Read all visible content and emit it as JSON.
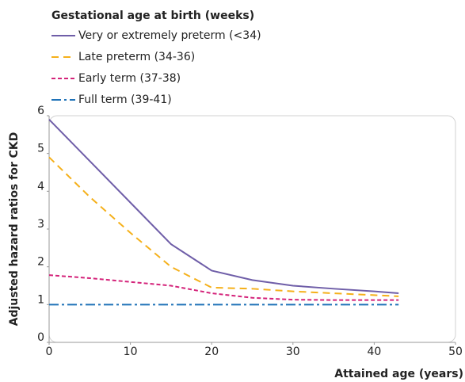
{
  "chart_data": {
    "type": "line",
    "legend_title": "Gestational age at birth (weeks)",
    "ylabel": "Adjusted hazard ratios for CKD",
    "xlabel": "Attained age (years)",
    "x": [
      0,
      5,
      10,
      15,
      20,
      25,
      30,
      35,
      40,
      43
    ],
    "series": [
      {
        "name": "Very or extremely preterm (<34)",
        "color": "#6f5ea8",
        "style": "solid",
        "values": [
          5.9,
          4.8,
          3.7,
          2.6,
          1.9,
          1.65,
          1.5,
          1.42,
          1.35,
          1.3
        ]
      },
      {
        "name": "Late preterm (34-36)",
        "color": "#f5b01a",
        "style": "dashed",
        "values": [
          4.9,
          3.85,
          2.9,
          2.0,
          1.45,
          1.42,
          1.35,
          1.3,
          1.25,
          1.22
        ]
      },
      {
        "name": "Early term (37-38)",
        "color": "#d4237a",
        "style": "dotted",
        "values": [
          1.78,
          1.7,
          1.6,
          1.5,
          1.3,
          1.18,
          1.13,
          1.12,
          1.12,
          1.12
        ]
      },
      {
        "name": "Full term (39-41)",
        "color": "#1f72b8",
        "style": "dashdot",
        "values": [
          1,
          1,
          1,
          1,
          1,
          1,
          1,
          1,
          1,
          1
        ]
      }
    ],
    "xlim": [
      0,
      50
    ],
    "xticks": [
      0,
      10,
      20,
      30,
      40,
      50
    ],
    "ylim": [
      0,
      6
    ],
    "yticks": [
      0,
      1,
      2,
      3,
      4,
      5,
      6
    ]
  }
}
